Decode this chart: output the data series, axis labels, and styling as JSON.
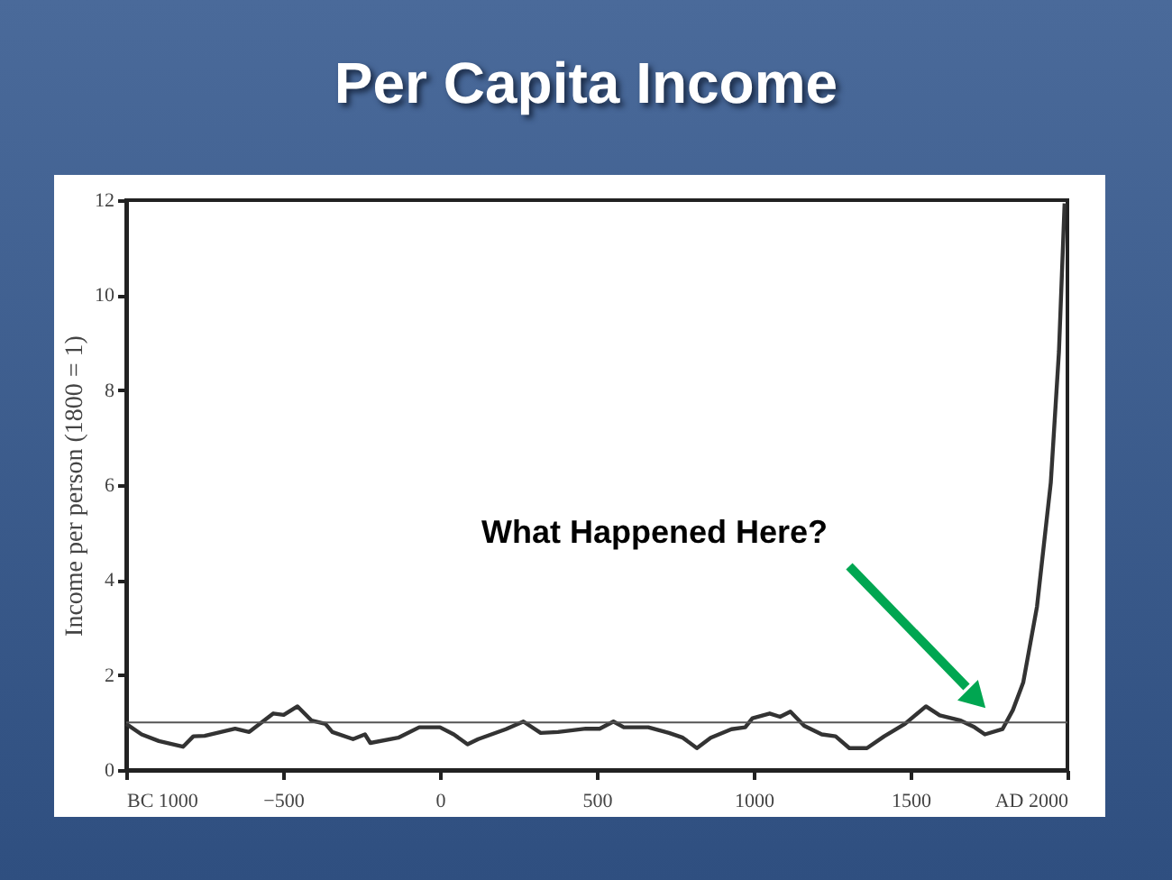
{
  "chart_data": {
    "type": "line",
    "title": "Per Capita Income",
    "ylabel": "Income per person (1800 = 1)",
    "x": [
      -1000,
      -951,
      -896,
      -819,
      -786,
      -750,
      -653,
      -608,
      -531,
      -498,
      -454,
      -409,
      -365,
      -343,
      -277,
      -239,
      -222,
      -133,
      -66,
      0,
      44,
      88,
      122,
      210,
      266,
      321,
      376,
      465,
      509,
      553,
      586,
      664,
      730,
      774,
      819,
      863,
      929,
      973,
      996,
      1051,
      1084,
      1117,
      1161,
      1217,
      1261,
      1305,
      1361,
      1416,
      1482,
      1549,
      1593,
      1660,
      1704,
      1737,
      1793,
      1826,
      1859,
      1903,
      1947,
      1973,
      1991
    ],
    "series": [
      {
        "color": "#333333",
        "values": [
          0.97,
          0.75,
          0.61,
          0.49,
          0.71,
          0.72,
          0.87,
          0.8,
          1.19,
          1.16,
          1.34,
          1.04,
          0.97,
          0.8,
          0.65,
          0.75,
          0.57,
          0.68,
          0.9,
          0.9,
          0.75,
          0.54,
          0.65,
          0.86,
          1.02,
          0.78,
          0.8,
          0.87,
          0.87,
          1.02,
          0.9,
          0.9,
          0.78,
          0.68,
          0.46,
          0.68,
          0.86,
          0.9,
          1.09,
          1.19,
          1.12,
          1.23,
          0.93,
          0.75,
          0.71,
          0.46,
          0.46,
          0.71,
          0.97,
          1.34,
          1.15,
          1.04,
          0.9,
          0.75,
          0.86,
          1.26,
          1.84,
          3.44,
          6.05,
          8.81,
          11.93
        ]
      }
    ],
    "xlim": [
      -1000,
      2000
    ],
    "ylim": [
      0,
      12
    ],
    "xticks": [
      {
        "value": -1000,
        "label": "BC 1000"
      },
      -500,
      0,
      500,
      {
        "value": 1000,
        "label": "1000"
      },
      {
        "value": 1500,
        "label": "1500"
      },
      {
        "value": 2000,
        "label": "AD 2000"
      }
    ],
    "yticks": [
      0,
      2,
      4,
      6,
      8,
      10,
      12
    ],
    "ref_lines": [
      {
        "axis": "y",
        "value": 1,
        "color": "#555555"
      }
    ],
    "annotations": [
      "What Happened Here?"
    ],
    "grid": false,
    "marker": "none",
    "line_style": "solid"
  }
}
